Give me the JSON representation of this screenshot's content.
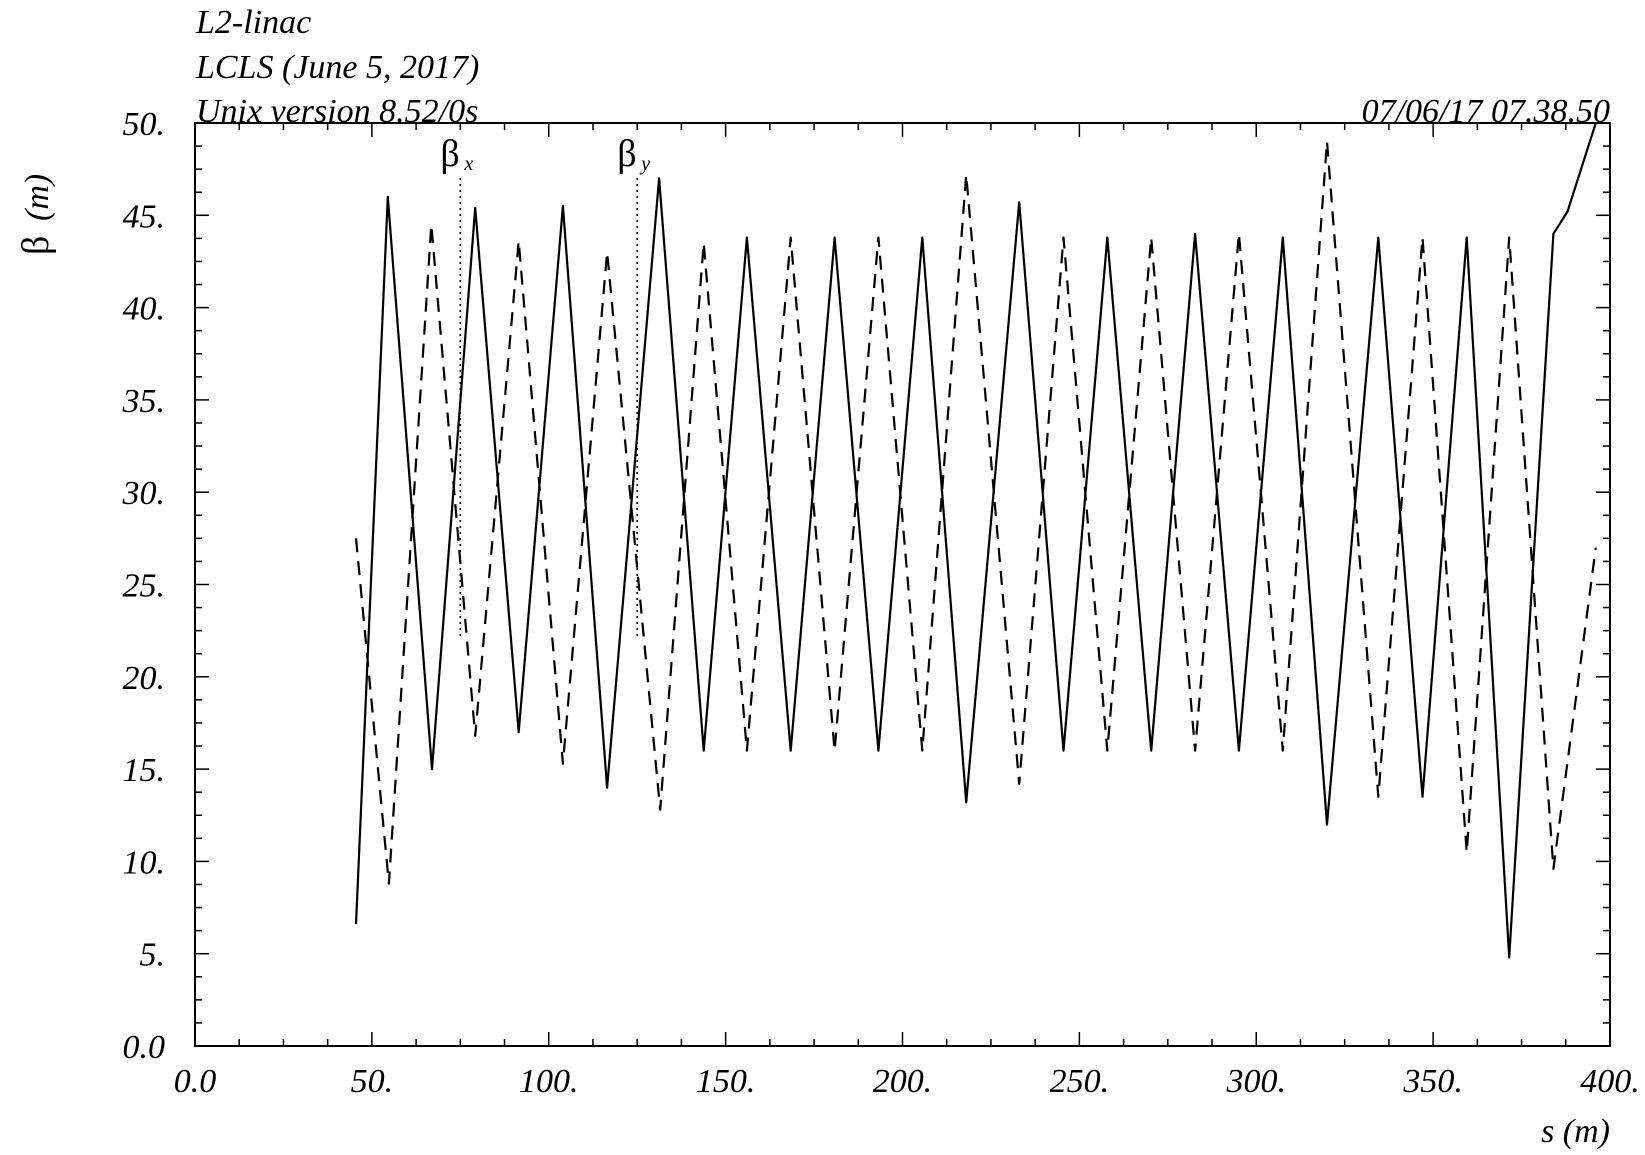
{
  "header": {
    "line1": "L2-linac",
    "line2": "LCLS (June 5, 2017)",
    "line3": "Unix version 8.52/0s",
    "timestamp": "07/06/17  07.38.50"
  },
  "colors": {
    "line": "#000000",
    "background": "#ffffff"
  },
  "chart_data": {
    "type": "line",
    "title": "",
    "xlabel": "s (m)",
    "ylabel_symbol": "β",
    "ylabel_unit": "(m)",
    "xlim": [
      0,
      400
    ],
    "ylim": [
      0,
      50
    ],
    "x_ticks": [
      0,
      50,
      100,
      150,
      200,
      250,
      300,
      350,
      400
    ],
    "x_tick_labels": [
      "0.0",
      "50.",
      "100.",
      "150.",
      "200.",
      "250.",
      "300.",
      "350.",
      "400."
    ],
    "y_ticks": [
      0,
      5,
      10,
      15,
      20,
      25,
      30,
      35,
      40,
      45,
      50
    ],
    "y_tick_labels": [
      "0.0",
      "5.",
      "10.",
      "15.",
      "20.",
      "25.",
      "30.",
      "35.",
      "40.",
      "45.",
      "50."
    ],
    "grid": false,
    "legend": [
      {
        "symbol": "β",
        "subscript": "x",
        "style": "solid",
        "marker_x": 75
      },
      {
        "symbol": "β",
        "subscript": "y",
        "style": "dashed",
        "marker_x": 125
      }
    ],
    "series": [
      {
        "name": "βx",
        "style": "solid",
        "points": [
          [
            45.5,
            6.6
          ],
          [
            54.5,
            46.0
          ],
          [
            67,
            15.0
          ],
          [
            79.2,
            45.4
          ],
          [
            91.5,
            17.0
          ],
          [
            104,
            45.5
          ],
          [
            116.5,
            14.0
          ],
          [
            131.2,
            47.0
          ],
          [
            143.8,
            16.0
          ],
          [
            156,
            43.8
          ],
          [
            168.4,
            16.0
          ],
          [
            180.8,
            43.8
          ],
          [
            193.2,
            16.0
          ],
          [
            205.6,
            43.8
          ],
          [
            218,
            13.2
          ],
          [
            233,
            45.7
          ],
          [
            245.5,
            16.0
          ],
          [
            257.9,
            43.8
          ],
          [
            270.3,
            16.0
          ],
          [
            282.7,
            44.0
          ],
          [
            295.1,
            16.0
          ],
          [
            307.5,
            43.8
          ],
          [
            320,
            12.0
          ],
          [
            334.5,
            43.8
          ],
          [
            347,
            13.5
          ],
          [
            359.5,
            43.8
          ],
          [
            371.5,
            4.8
          ],
          [
            384,
            44.0
          ],
          [
            388,
            45.2
          ],
          [
            396,
            50.0
          ]
        ]
      },
      {
        "name": "βy",
        "style": "dashed",
        "points": [
          [
            45.5,
            27.5
          ],
          [
            54.8,
            8.8
          ],
          [
            66.8,
            44.5
          ],
          [
            79.2,
            16.8
          ],
          [
            91.5,
            43.6
          ],
          [
            104,
            15.3
          ],
          [
            116.5,
            43.0
          ],
          [
            131.5,
            12.8
          ],
          [
            143.8,
            43.5
          ],
          [
            156,
            16.0
          ],
          [
            168.4,
            43.8
          ],
          [
            180.8,
            16.0
          ],
          [
            193.2,
            43.8
          ],
          [
            205.6,
            16.0
          ],
          [
            218,
            47.2
          ],
          [
            233,
            14.2
          ],
          [
            245.5,
            43.8
          ],
          [
            257.9,
            16.0
          ],
          [
            270.3,
            43.8
          ],
          [
            282.7,
            16.0
          ],
          [
            295.1,
            44.0
          ],
          [
            307.5,
            16.0
          ],
          [
            320,
            49.0
          ],
          [
            334.5,
            13.5
          ],
          [
            347,
            43.8
          ],
          [
            359.5,
            10.5
          ],
          [
            371.5,
            43.8
          ],
          [
            384,
            9.6
          ],
          [
            396,
            27.0
          ]
        ]
      }
    ]
  }
}
